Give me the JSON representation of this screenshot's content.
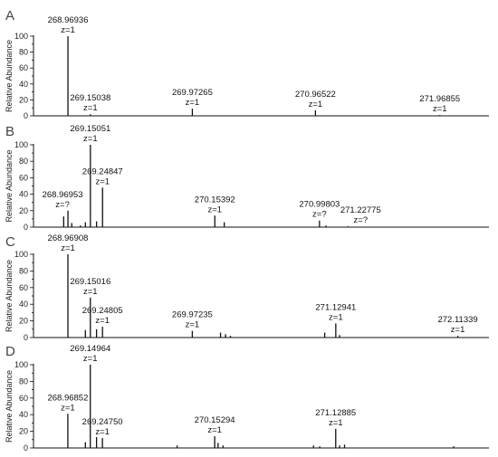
{
  "chart_data": [
    {
      "type": "bar",
      "panel": "A",
      "ylabel": "Relative Abundance",
      "ylim": [
        0,
        100
      ],
      "yticks": [
        0,
        20,
        40,
        60,
        80,
        100
      ],
      "grid": false,
      "peaks": [
        {
          "mz": 268.96936,
          "value": 100
        },
        {
          "mz": 269.15038,
          "value": 2
        },
        {
          "mz": 269.97265,
          "value": 9
        },
        {
          "mz": 270.96522,
          "value": 7
        },
        {
          "mz": 271.96855,
          "value": 1
        }
      ],
      "labels": [
        {
          "mz": 268.96936,
          "line1": "268.96936",
          "line2": "z=1"
        },
        {
          "mz": 269.15038,
          "line1": "269.15038",
          "line2": "z=1"
        },
        {
          "mz": 269.97265,
          "line1": "269.97265",
          "line2": "z=1"
        },
        {
          "mz": 270.96522,
          "line1": "270.96522",
          "line2": "z=1"
        },
        {
          "mz": 271.96855,
          "line1": "271.96855",
          "line2": "z=1"
        }
      ]
    },
    {
      "type": "bar",
      "panel": "B",
      "ylabel": "Relative Abundance",
      "ylim": [
        0,
        100
      ],
      "yticks": [
        0,
        20,
        40,
        60,
        80,
        100
      ],
      "grid": false,
      "peaks": [
        {
          "mz": 268.935,
          "value": 13
        },
        {
          "mz": 268.96953,
          "value": 20
        },
        {
          "mz": 269.0,
          "value": 5
        },
        {
          "mz": 269.07,
          "value": 2
        },
        {
          "mz": 269.11,
          "value": 6
        },
        {
          "mz": 269.15051,
          "value": 100
        },
        {
          "mz": 269.2,
          "value": 7
        },
        {
          "mz": 269.24847,
          "value": 48
        },
        {
          "mz": 270.15392,
          "value": 14
        },
        {
          "mz": 270.23,
          "value": 6
        },
        {
          "mz": 270.99803,
          "value": 8
        },
        {
          "mz": 271.05,
          "value": 2
        },
        {
          "mz": 271.22775,
          "value": 1
        }
      ],
      "labels": [
        {
          "mz": 268.96953,
          "line1": "268.96953",
          "line2": "z=?"
        },
        {
          "mz": 269.15051,
          "line1": "269.15051",
          "line2": "z=1"
        },
        {
          "mz": 269.24847,
          "line1": "269.24847",
          "line2": "z=1"
        },
        {
          "mz": 270.15392,
          "line1": "270.15392",
          "line2": "z=1"
        },
        {
          "mz": 270.99803,
          "line1": "270.99803",
          "line2": "z=?"
        },
        {
          "mz": 271.22775,
          "line1": "271.22775",
          "line2": "z=?"
        }
      ]
    },
    {
      "type": "bar",
      "panel": "C",
      "ylabel": "Relative Abundance",
      "ylim": [
        0,
        100
      ],
      "yticks": [
        0,
        20,
        40,
        60,
        80,
        100
      ],
      "grid": false,
      "peaks": [
        {
          "mz": 268.96908,
          "value": 100
        },
        {
          "mz": 269.11,
          "value": 9
        },
        {
          "mz": 269.15016,
          "value": 48
        },
        {
          "mz": 269.2,
          "value": 10
        },
        {
          "mz": 269.24805,
          "value": 13
        },
        {
          "mz": 269.97235,
          "value": 8
        },
        {
          "mz": 270.2,
          "value": 6
        },
        {
          "mz": 270.24,
          "value": 4
        },
        {
          "mz": 270.28,
          "value": 2
        },
        {
          "mz": 271.04,
          "value": 6
        },
        {
          "mz": 271.12941,
          "value": 17
        },
        {
          "mz": 271.16,
          "value": 3
        },
        {
          "mz": 272.11339,
          "value": 2
        }
      ],
      "labels": [
        {
          "mz": 268.96908,
          "line1": "268.96908",
          "line2": "z=1"
        },
        {
          "mz": 269.15016,
          "line1": "269.15016",
          "line2": "z=1"
        },
        {
          "mz": 269.24805,
          "line1": "269.24805",
          "line2": "z=1"
        },
        {
          "mz": 269.97235,
          "line1": "269.97235",
          "line2": "z=1"
        },
        {
          "mz": 271.12941,
          "line1": "271.12941",
          "line2": "z=1"
        },
        {
          "mz": 272.11339,
          "line1": "272.11339",
          "line2": "z=1"
        }
      ]
    },
    {
      "type": "bar",
      "panel": "D",
      "ylabel": "Relative Abundance",
      "ylim": [
        0,
        100
      ],
      "yticks": [
        0,
        20,
        40,
        60,
        80,
        100
      ],
      "grid": false,
      "peaks": [
        {
          "mz": 268.96852,
          "value": 41
        },
        {
          "mz": 269.11,
          "value": 7
        },
        {
          "mz": 269.14964,
          "value": 100
        },
        {
          "mz": 269.2,
          "value": 13
        },
        {
          "mz": 269.2475,
          "value": 12
        },
        {
          "mz": 269.85,
          "value": 3
        },
        {
          "mz": 270.15294,
          "value": 14
        },
        {
          "mz": 270.18,
          "value": 6
        },
        {
          "mz": 270.22,
          "value": 3
        },
        {
          "mz": 270.95,
          "value": 3
        },
        {
          "mz": 271.0,
          "value": 2
        },
        {
          "mz": 271.12885,
          "value": 23
        },
        {
          "mz": 271.16,
          "value": 3
        },
        {
          "mz": 271.2,
          "value": 4
        },
        {
          "mz": 272.08,
          "value": 2
        }
      ],
      "labels": [
        {
          "mz": 268.96852,
          "line1": "268.96852",
          "line2": "z=1"
        },
        {
          "mz": 269.14964,
          "line1": "269.14964",
          "line2": "z=1"
        },
        {
          "mz": 269.2475,
          "line1": "269.24750",
          "line2": "z=1"
        },
        {
          "mz": 270.15294,
          "line1": "270.15294",
          "line2": "z=1"
        },
        {
          "mz": 271.12885,
          "line1": "271.12885",
          "line2": "z=1"
        }
      ]
    }
  ]
}
